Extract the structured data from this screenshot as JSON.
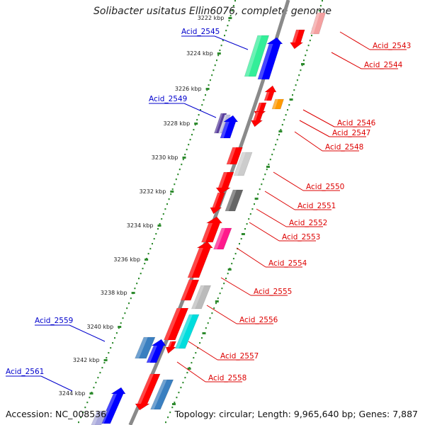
{
  "header": {
    "title": "Solibacter usitatus Ellin6076, complete genome"
  },
  "footer": {
    "accession_label": "Accession:",
    "accession_value": "NC_008536",
    "topology_text": "Topology: circular; Length: 9,965,640 bp; Genes: 7,887"
  },
  "colors": {
    "backbone": "#8a8a8a",
    "tick_dots": "#2e8b2e",
    "left_labels": "#0000cc",
    "right_labels": "#dd0000"
  },
  "ticks": [
    {
      "label": "3222 kbp"
    },
    {
      "label": "3224 kbp"
    },
    {
      "label": "3226 kbp"
    },
    {
      "label": "3228 kbp"
    },
    {
      "label": "3230 kbp"
    },
    {
      "label": "3232 kbp"
    },
    {
      "label": "3234 kbp"
    },
    {
      "label": "3236 kbp"
    },
    {
      "label": "3238 kbp"
    },
    {
      "label": "3240 kbp"
    },
    {
      "label": "3242 kbp"
    },
    {
      "label": "3244 kbp"
    }
  ],
  "left_labels": [
    {
      "label": "Acid_2545"
    },
    {
      "label": "Acid_2549"
    },
    {
      "label": "Acid_2559"
    },
    {
      "label": "Acid_2561"
    }
  ],
  "right_labels": [
    {
      "label": "Acid_2543"
    },
    {
      "label": "Acid_2544"
    },
    {
      "label": "Acid_2546"
    },
    {
      "label": "Acid_2547"
    },
    {
      "label": "Acid_2548"
    },
    {
      "label": "Acid_2550"
    },
    {
      "label": "Acid_2551"
    },
    {
      "label": "Acid_2552"
    },
    {
      "label": "Acid_2553"
    },
    {
      "label": "Acid_2554"
    },
    {
      "label": "Acid_2555"
    },
    {
      "label": "Acid_2556"
    },
    {
      "label": "Acid_2557"
    },
    {
      "label": "Acid_2558"
    }
  ],
  "genes": [
    {
      "name": "gene-Acid_2543",
      "color": "#f4a0a0"
    },
    {
      "name": "gene-Acid_2543b",
      "color": "#ff0000"
    },
    {
      "name": "gene-Acid_2544",
      "color": "#ff0000"
    },
    {
      "name": "gene-Acid_2545",
      "color": "#33ee99"
    },
    {
      "name": "gene-Acid_2545b",
      "color": "#0000ff"
    },
    {
      "name": "gene-Acid_2546",
      "color": "#ff0000"
    },
    {
      "name": "gene-Acid_2546b",
      "color": "#ff9900"
    },
    {
      "name": "gene-Acid_2547",
      "color": "#ff0000"
    },
    {
      "name": "gene-Acid_2548",
      "color": "#ff0000"
    },
    {
      "name": "gene-Acid_2549",
      "color": "#5a3f9e"
    },
    {
      "name": "gene-Acid_2549b",
      "color": "#bbbbdd"
    },
    {
      "name": "gene-Acid_2549c",
      "color": "#0000ff"
    },
    {
      "name": "gene-Acid_2550",
      "color": "#ff0000"
    },
    {
      "name": "gene-Acid_2550b",
      "color": "#cccccc"
    },
    {
      "name": "gene-Acid_2551",
      "color": "#ff0000"
    },
    {
      "name": "gene-Acid_2552",
      "color": "#ff0000"
    },
    {
      "name": "gene-Acid_2552b",
      "color": "#666666"
    },
    {
      "name": "gene-Acid_2553",
      "color": "#ff0000"
    },
    {
      "name": "gene-Acid_2554",
      "color": "#ff1a8c"
    },
    {
      "name": "gene-Acid_2554b",
      "color": "#ff0000"
    },
    {
      "name": "gene-Acid_2555",
      "color": "#ff0000"
    },
    {
      "name": "gene-Acid_2555b",
      "color": "#bbbbbb"
    },
    {
      "name": "gene-Acid_2556",
      "color": "#ff0000"
    },
    {
      "name": "gene-Acid_2557",
      "color": "#00dddd"
    },
    {
      "name": "gene-Acid_2557b",
      "color": "#ff0000"
    },
    {
      "name": "gene-Acid_2558",
      "color": "#ff0000"
    },
    {
      "name": "gene-Acid_2558b",
      "color": "#3a7fc0"
    },
    {
      "name": "gene-Acid_2559",
      "color": "#3a7fc0"
    },
    {
      "name": "gene-Acid_2559b",
      "color": "#0000ff"
    },
    {
      "name": "gene-Acid_2561",
      "color": "#0000ff"
    },
    {
      "name": "gene-Acid_2561b",
      "color": "#aaaadd"
    }
  ]
}
